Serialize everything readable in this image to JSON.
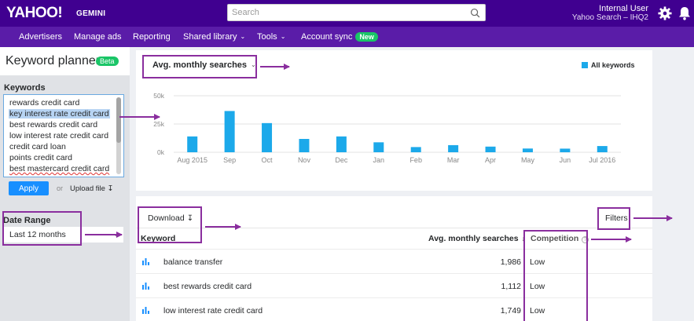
{
  "header": {
    "logo": "YAHOO!",
    "logo_sub": "GEMINI",
    "search_placeholder": "Search",
    "user_name": "Internal User",
    "user_org": "Yahoo Search – IHQ2"
  },
  "nav": {
    "items": [
      {
        "label": "Advertisers"
      },
      {
        "label": "Manage ads"
      },
      {
        "label": "Reporting"
      },
      {
        "label": "Shared library"
      },
      {
        "label": "Tools"
      },
      {
        "label": "Account sync"
      }
    ],
    "new_badge": "New"
  },
  "left": {
    "title": "Keyword planner",
    "beta": "Beta",
    "keywords_label": "Keywords",
    "keywords": [
      "rewards credit card",
      "key interest rate credit card",
      "best rewards credit card",
      "low interest rate credit card",
      "credit card loan",
      "points credit card",
      "best mastercard credit card"
    ],
    "apply": "Apply",
    "or": "or",
    "upload": "Upload file",
    "date_label": "Date Range",
    "date_value": "Last 12 months"
  },
  "chart_card": {
    "metric": "Avg. monthly searches",
    "legend": "All keywords",
    "legend_color": "#1ca9ea"
  },
  "chart_data": {
    "type": "bar",
    "categories": [
      "Aug 2015",
      "Sep",
      "Oct",
      "Nov",
      "Dec",
      "Jan",
      "Feb",
      "Mar",
      "Apr",
      "May",
      "Jun",
      "Jul 2016"
    ],
    "tick_labels": [
      "Aug 2015",
      "Sep",
      "Oct",
      "Nov",
      "Dec",
      "Jan",
      "Feb",
      "Mar",
      "Apr",
      "May",
      "Jun",
      "Jul 2016"
    ],
    "series": [
      {
        "name": "All keywords",
        "values": [
          14000,
          36500,
          25800,
          11800,
          14000,
          8800,
          4600,
          6300,
          5000,
          3300,
          3200,
          5500
        ]
      }
    ],
    "yticks": [
      "50k",
      "25k",
      "0k"
    ],
    "ytick_values": [
      50000,
      25000,
      0
    ],
    "ylim": [
      0,
      50000
    ],
    "grid": true,
    "legend_position": "top-right"
  },
  "table": {
    "download": "Download",
    "filters": "Filters",
    "columns": {
      "keyword": "Keyword",
      "searches": "Avg. monthly searches",
      "competition": "Competition"
    },
    "rows": [
      {
        "keyword": "balance transfer",
        "searches": "1,986",
        "competition": "Low"
      },
      {
        "keyword": "best rewards credit card",
        "searches": "1,112",
        "competition": "Low"
      },
      {
        "keyword": "low interest rate credit card",
        "searches": "1,749",
        "competition": "Low"
      }
    ]
  }
}
